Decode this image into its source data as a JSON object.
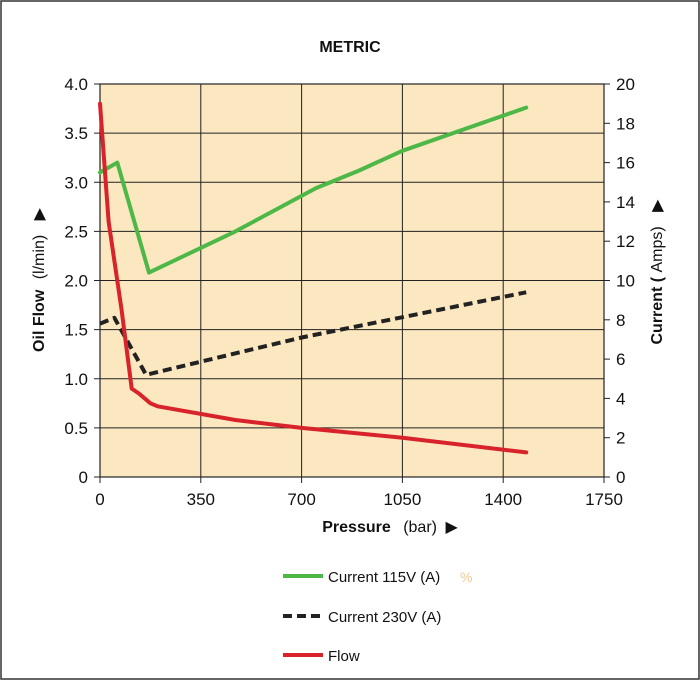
{
  "chart_data": {
    "type": "line",
    "title": "METRIC",
    "xlabel": {
      "bold": "Pressure",
      "unit": "(bar)",
      "arrow": "▶"
    },
    "ylabel_left": {
      "bold": "Oil Flow",
      "unit": "(l/min)",
      "arrow": "▶"
    },
    "ylabel_right": {
      "bold": "Current (",
      "unit": "Amps)",
      "arrow": "▶"
    },
    "xlim": [
      0,
      1750
    ],
    "ylim_left": [
      0,
      4.0
    ],
    "ylim_right": [
      0,
      20
    ],
    "x_ticks": [
      "0",
      "350",
      "700",
      "1050",
      "1400",
      "1750"
    ],
    "y_left_ticks": [
      "0",
      "0.5",
      "1.0",
      "1.5",
      "2.0",
      "2.5",
      "3.0",
      "3.5",
      "4.0"
    ],
    "y_right_ticks": [
      "0",
      "2",
      "4",
      "6",
      "8",
      "10",
      "12",
      "14",
      "16",
      "18",
      "20"
    ],
    "grid": true,
    "plot_background": "#fbe8c0",
    "series": [
      {
        "name": "Current 115V (A)",
        "axis": "right",
        "color": "#4db848",
        "dashed": false,
        "points": [
          [
            0,
            15.5
          ],
          [
            60,
            16.0
          ],
          [
            170,
            10.4
          ],
          [
            470,
            12.5
          ],
          [
            750,
            14.7
          ],
          [
            900,
            15.6
          ],
          [
            1050,
            16.6
          ],
          [
            1480,
            18.8
          ]
        ]
      },
      {
        "name": "Current 230V (A)",
        "axis": "right",
        "color": "#222222",
        "dashed": true,
        "points": [
          [
            0,
            7.8
          ],
          [
            50,
            8.1
          ],
          [
            160,
            5.2
          ],
          [
            700,
            7.1
          ],
          [
            1480,
            9.4
          ]
        ]
      },
      {
        "name": "Flow",
        "axis": "left",
        "color": "#d8232a",
        "dashed": false,
        "points": [
          [
            0,
            3.8
          ],
          [
            30,
            2.6
          ],
          [
            75,
            1.7
          ],
          [
            110,
            0.9
          ],
          [
            135,
            0.85
          ],
          [
            175,
            0.75
          ],
          [
            200,
            0.72
          ],
          [
            470,
            0.58
          ],
          [
            700,
            0.5
          ],
          [
            1050,
            0.4
          ],
          [
            1480,
            0.25
          ]
        ]
      }
    ],
    "legend": {
      "placement": "bottom-center",
      "stray_mark": "%"
    }
  }
}
